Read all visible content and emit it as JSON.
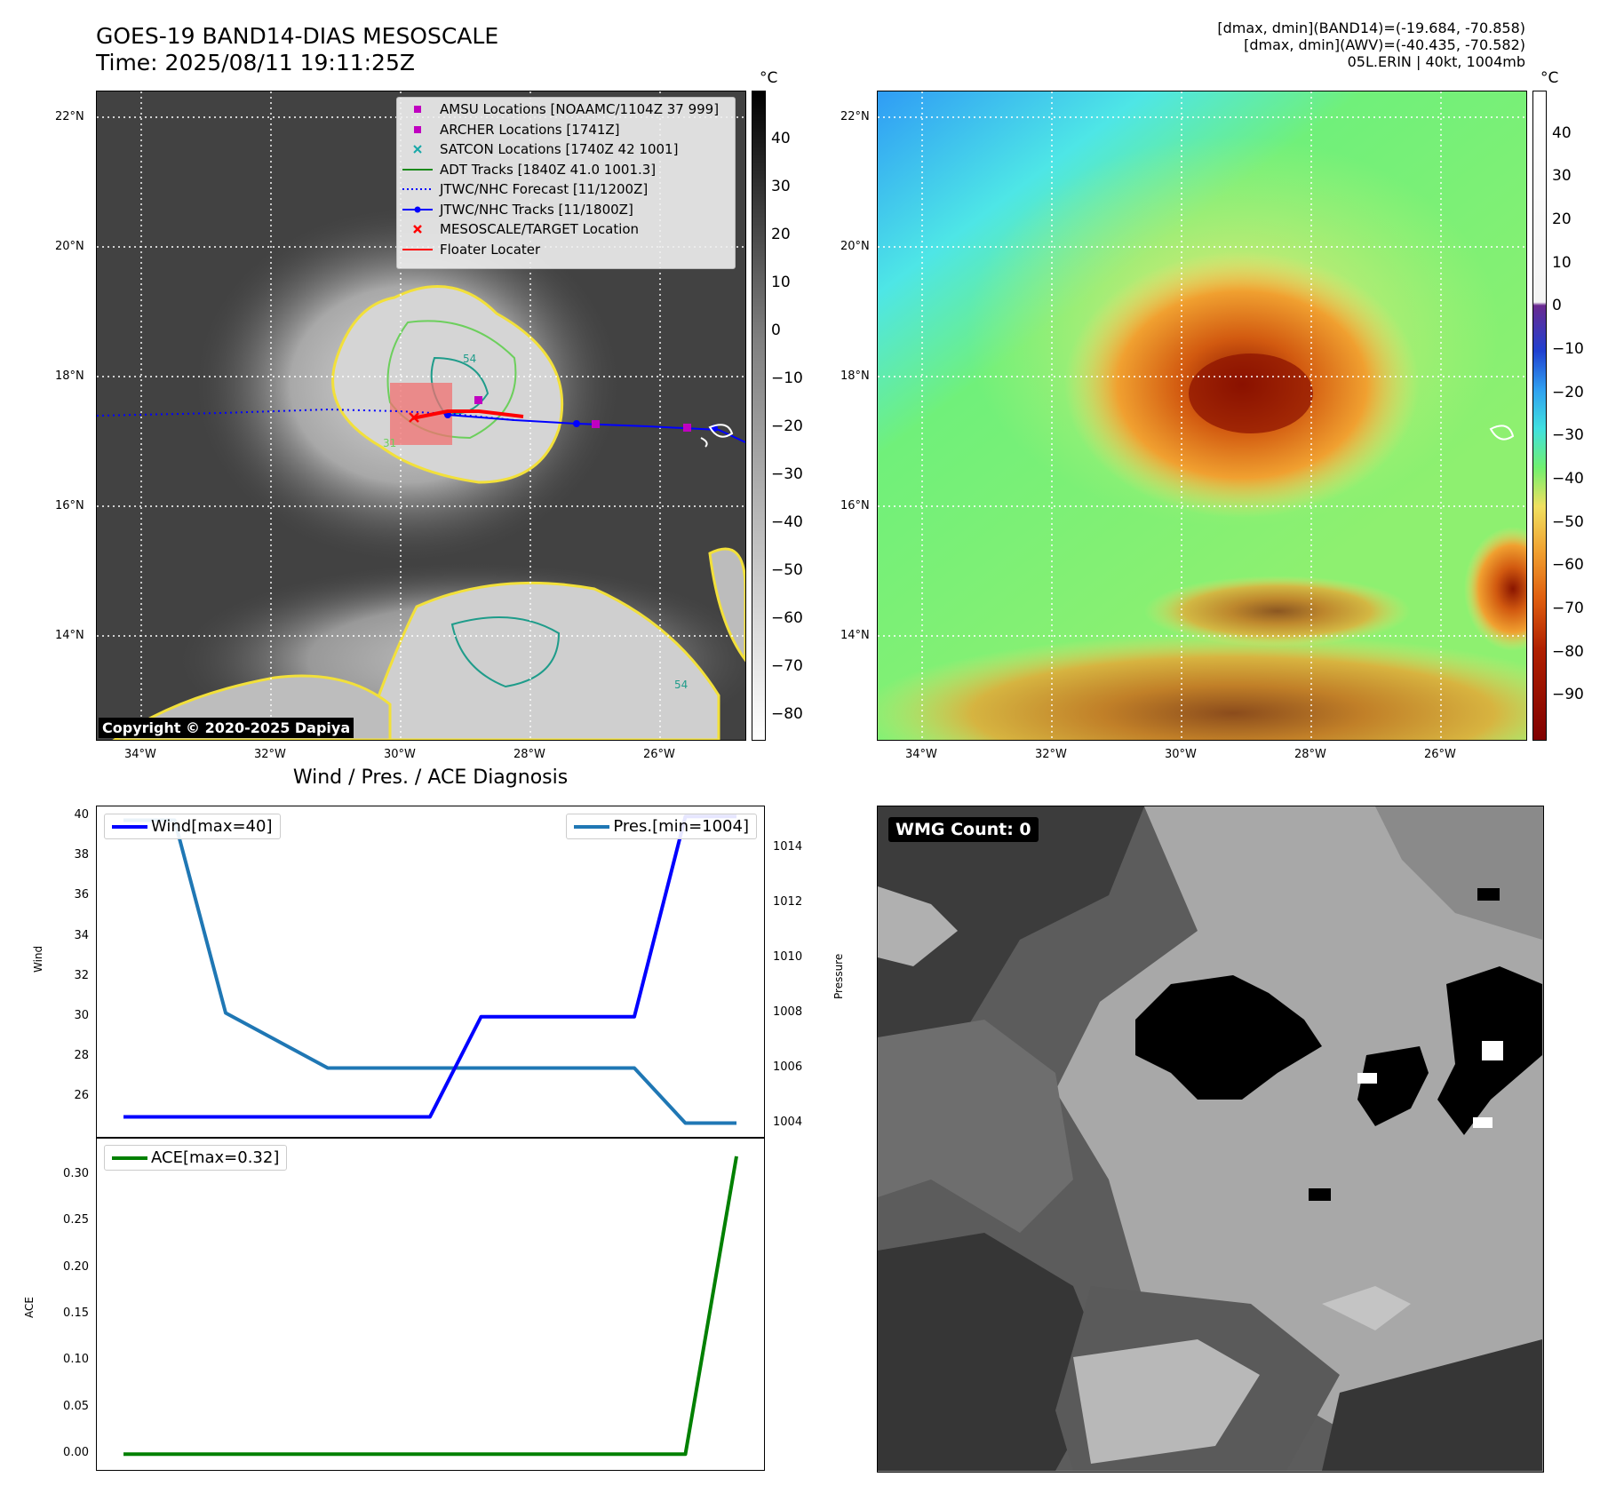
{
  "header": {
    "title": "GOES-19 BAND14-DIAS MESOSCALE",
    "time": "Time: 2025/08/11 19:11:25Z",
    "info": [
      "[dmax, dmin](BAND14)=(-19.684, -70.858)",
      "[dmax, dmin](AWV)=(-40.435, -70.582)",
      "05L.ERIN | 40kt, 1004mb"
    ]
  },
  "map_axes": {
    "lon_ticks": [
      "34°W",
      "32°W",
      "30°W",
      "28°W",
      "26°W"
    ],
    "lat_ticks": [
      "22°N",
      "20°N",
      "18°N",
      "16°N",
      "14°N"
    ],
    "contour_labels": [
      "54",
      "31",
      "54"
    ]
  },
  "ir_panel": {
    "copyright": "Copyright © 2020-2025 Dapiya",
    "colorbar": {
      "unit": "°C",
      "ticks": [
        "40",
        "30",
        "20",
        "10",
        "0",
        "−10",
        "−20",
        "−30",
        "−40",
        "−50",
        "−60",
        "−70",
        "−80"
      ]
    },
    "legend": [
      {
        "label": "AMSU Locations [NOAAMC/1104Z 37 999]",
        "icon": "magenta-square-marker",
        "color": "#c000c0"
      },
      {
        "label": "ARCHER Locations [1741Z]",
        "icon": "magenta-square-marker",
        "color": "#c000c0"
      },
      {
        "label": "SATCON Locations [1740Z 42 1001]",
        "icon": "teal-x-marker",
        "color": "#17a8a8"
      },
      {
        "label": "ADT Tracks [1840Z 41.0 1001.3]",
        "icon": "green-line",
        "color": "#1b8a1b"
      },
      {
        "label": "JTWC/NHC Forecast [11/1200Z]",
        "icon": "blue-dotted-line",
        "color": "#0000ff"
      },
      {
        "label": "JTWC/NHC Tracks [11/1800Z]",
        "icon": "blue-line-dot",
        "color": "#0000ff"
      },
      {
        "label": "MESOSCALE/TARGET Location",
        "icon": "red-x-marker",
        "color": "#ff0000"
      },
      {
        "label": "Floater Locater",
        "icon": "red-line",
        "color": "#ff0000"
      }
    ]
  },
  "wv_panel": {
    "colorbar": {
      "unit": "°C",
      "ticks": [
        "40",
        "30",
        "20",
        "10",
        "0",
        "−10",
        "−20",
        "−30",
        "−40",
        "−50",
        "−60",
        "−70",
        "−80",
        "−90"
      ]
    }
  },
  "wmg_panel": {
    "label": "WMG Count: 0"
  },
  "chart_data": [
    {
      "type": "line",
      "title": "Wind / Pres. / ACE Diagnosis",
      "ylabel": "Wind",
      "y2label": "Pressure",
      "x": [
        0,
        1,
        2,
        3,
        4,
        5,
        6,
        7,
        8,
        9,
        10,
        11,
        12
      ],
      "ylim": [
        24,
        40.5
      ],
      "y2lim": [
        1003.5,
        1015.5
      ],
      "yticks": [
        "26",
        "28",
        "30",
        "32",
        "34",
        "36",
        "38",
        "40"
      ],
      "y2ticks": [
        "1004",
        "1006",
        "1008",
        "1010",
        "1012",
        "1014"
      ],
      "series": [
        {
          "name": "Wind[max=40]",
          "axis": "left",
          "color": "#0000ff",
          "values": [
            25,
            25,
            25,
            25,
            25,
            25,
            25,
            30,
            30,
            30,
            30,
            40,
            40
          ]
        },
        {
          "name": "Pres.[min=1004]",
          "axis": "right",
          "color": "#1f77b4",
          "values": [
            1015,
            1015,
            1008,
            1007,
            1006,
            1006,
            1006,
            1006,
            1006,
            1006,
            1006,
            1004,
            1004
          ]
        }
      ]
    },
    {
      "type": "line",
      "ylabel": "ACE",
      "x": [
        0,
        1,
        2,
        3,
        4,
        5,
        6,
        7,
        8,
        9,
        10,
        11,
        12
      ],
      "ylim": [
        -0.016,
        0.34
      ],
      "yticks": [
        "0.00",
        "0.05",
        "0.10",
        "0.15",
        "0.20",
        "0.25",
        "0.30"
      ],
      "series": [
        {
          "name": "ACE[max=0.32]",
          "color": "#008000",
          "values": [
            0,
            0,
            0,
            0,
            0,
            0,
            0,
            0,
            0,
            0,
            0,
            0,
            0.32
          ]
        }
      ]
    }
  ]
}
